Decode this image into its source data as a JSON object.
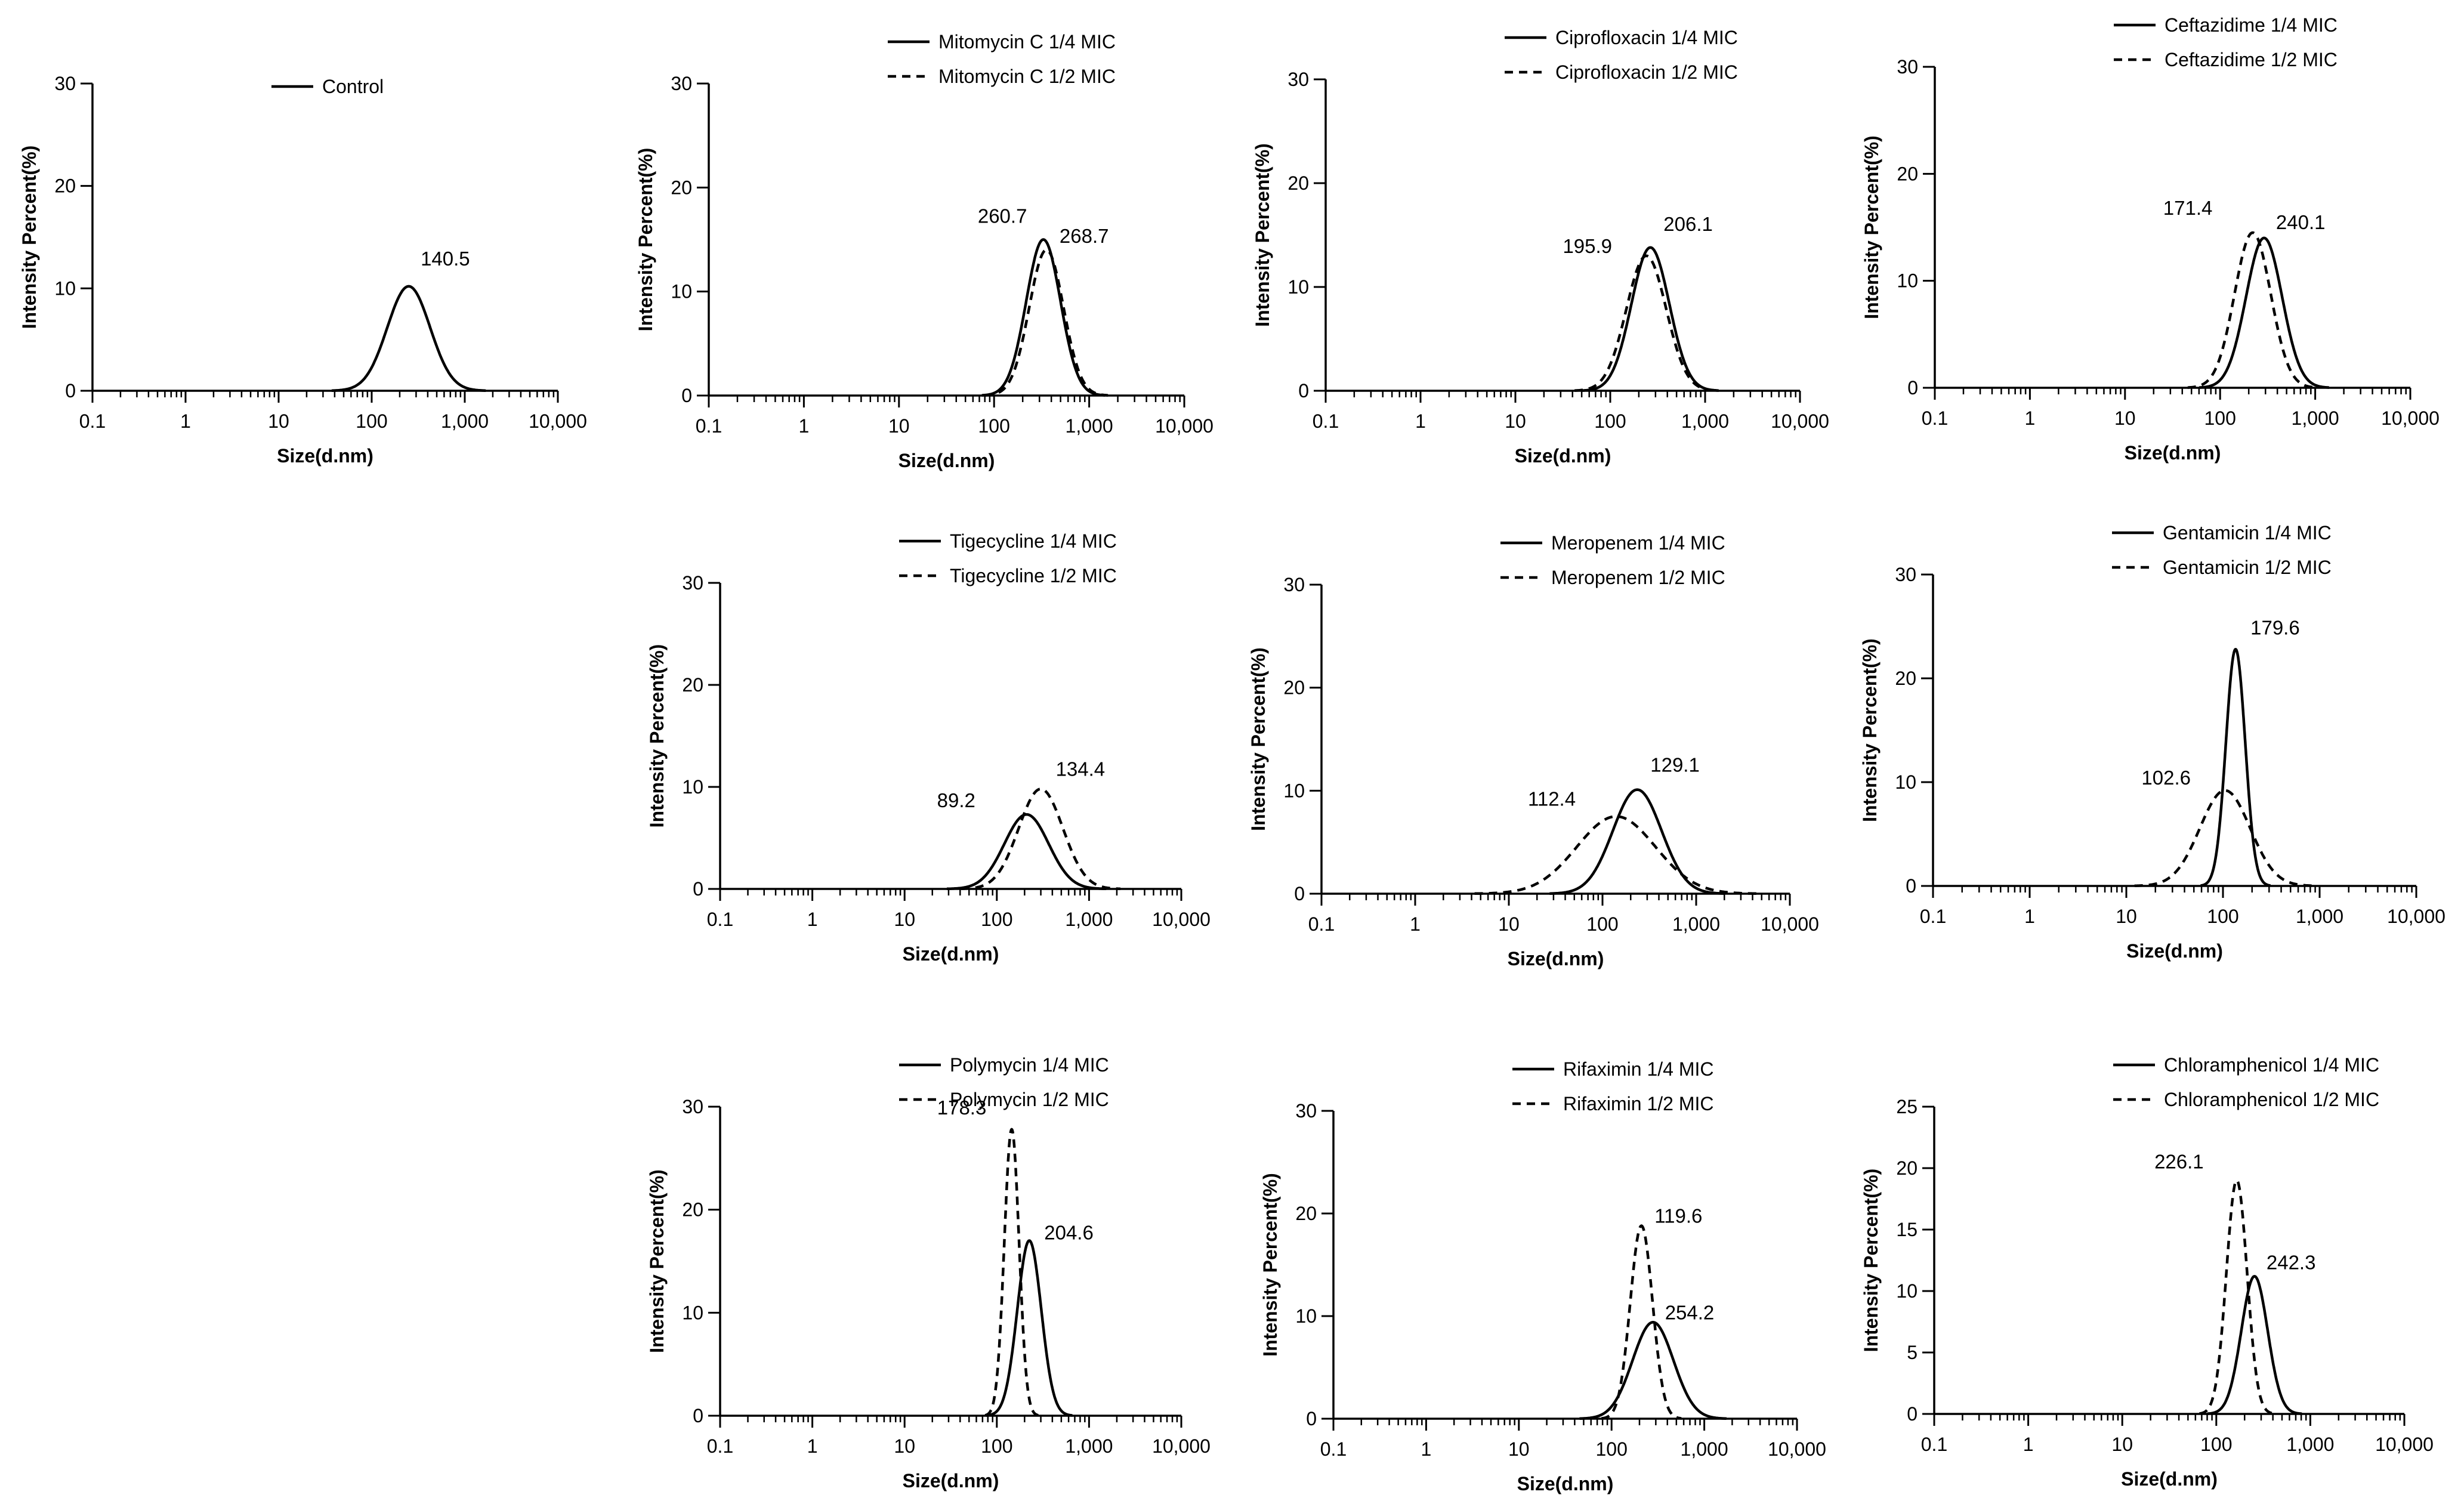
{
  "chart_data": [
    {
      "type": "line",
      "id": "control",
      "xlabel": "Size(d.nm)",
      "ylabel": "Intensity Percent(%)",
      "xscale": "log",
      "xlim": [
        0.1,
        10000
      ],
      "ylim": [
        0,
        30
      ],
      "xticks": [
        "0.1",
        "1",
        "10",
        "100",
        "1,000",
        "10,000"
      ],
      "yticks": [
        "0",
        "10",
        "20",
        "30"
      ],
      "series": [
        {
          "name": "Control",
          "style": "solid",
          "peak_x": 250,
          "peak_y": 10.2,
          "width": 0.23,
          "label": "140.5"
        }
      ]
    },
    {
      "type": "line",
      "id": "mitomycin",
      "xlabel": "Size(d.nm)",
      "ylabel": "Intensity Percent(%)",
      "xscale": "log",
      "xlim": [
        0.1,
        10000
      ],
      "ylim": [
        0,
        30
      ],
      "xticks": [
        "0.1",
        "1",
        "10",
        "100",
        "1,000",
        "10,000"
      ],
      "yticks": [
        "0",
        "10",
        "20",
        "30"
      ],
      "series": [
        {
          "name": "Mitomycin C 1/4 MIC",
          "style": "solid",
          "peak_x": 330,
          "peak_y": 15.0,
          "width": 0.18,
          "label": "260.7"
        },
        {
          "name": "Mitomycin C 1/2 MIC",
          "style": "dashed",
          "peak_x": 355,
          "peak_y": 14.0,
          "width": 0.18,
          "label": "268.7"
        }
      ]
    },
    {
      "type": "line",
      "id": "ciprofloxacin",
      "xlabel": "Size(d.nm)",
      "ylabel": "Intensity Percent(%)",
      "xscale": "log",
      "xlim": [
        0.1,
        10000
      ],
      "ylim": [
        0,
        30
      ],
      "xticks": [
        "0.1",
        "1",
        "10",
        "100",
        "1,000",
        "10,000"
      ],
      "yticks": [
        "0",
        "10",
        "20",
        "30"
      ],
      "series": [
        {
          "name": "Ciprofloxacin 1/4 MIC",
          "style": "solid",
          "peak_x": 265,
          "peak_y": 13.8,
          "width": 0.2,
          "label": "206.1"
        },
        {
          "name": "Ciprofloxacin 1/2 MIC",
          "style": "dashed",
          "peak_x": 240,
          "peak_y": 13.0,
          "width": 0.21,
          "label": "195.9"
        }
      ]
    },
    {
      "type": "line",
      "id": "ceftazidime",
      "xlabel": "Size(d.nm)",
      "ylabel": "Intensity Percent(%)",
      "xscale": "log",
      "xlim": [
        0.1,
        10000
      ],
      "ylim": [
        0,
        30
      ],
      "xticks": [
        "0.1",
        "1",
        "10",
        "100",
        "1,000",
        "10,000"
      ],
      "yticks": [
        "0",
        "10",
        "20",
        "30"
      ],
      "series": [
        {
          "name": "Ceftazidime 1/4 MIC",
          "style": "solid",
          "peak_x": 290,
          "peak_y": 14.0,
          "width": 0.19,
          "label": "240.1"
        },
        {
          "name": "Ceftazidime 1/2 MIC",
          "style": "dashed",
          "peak_x": 220,
          "peak_y": 14.5,
          "width": 0.19,
          "label": "171.4"
        }
      ]
    },
    {
      "type": "line",
      "id": "tigecycline",
      "xlabel": "Size(d.nm)",
      "ylabel": "Intensity Percent(%)",
      "xscale": "log",
      "xlim": [
        0.1,
        10000
      ],
      "ylim": [
        0,
        30
      ],
      "xticks": [
        "0.1",
        "1",
        "10",
        "100",
        "1,000",
        "10,000"
      ],
      "yticks": [
        "0",
        "10",
        "20",
        "30"
      ],
      "series": [
        {
          "name": "Tigecycline 1/4 MIC",
          "style": "solid",
          "peak_x": 210,
          "peak_y": 7.3,
          "width": 0.24,
          "label": "89.2"
        },
        {
          "name": "Tigecycline 1/2 MIC",
          "style": "dashed",
          "peak_x": 300,
          "peak_y": 9.8,
          "width": 0.24,
          "label": "134.4"
        }
      ]
    },
    {
      "type": "line",
      "id": "meropenem",
      "xlabel": "Size(d.nm)",
      "ylabel": "Intensity Percent(%)",
      "xscale": "log",
      "xlim": [
        0.1,
        10000
      ],
      "ylim": [
        0,
        30
      ],
      "xticks": [
        "0.1",
        "1",
        "10",
        "100",
        "1,000",
        "10,000"
      ],
      "yticks": [
        "0",
        "10",
        "20",
        "30"
      ],
      "series": [
        {
          "name": "Meropenem 1/4 MIC",
          "style": "solid",
          "peak_x": 235,
          "peak_y": 10.1,
          "width": 0.26,
          "label": "129.1"
        },
        {
          "name": "Meropenem 1/2 MIC",
          "style": "dashed",
          "peak_x": 140,
          "peak_y": 7.5,
          "width": 0.42,
          "label": "112.4"
        }
      ]
    },
    {
      "type": "line",
      "id": "gentamicin",
      "xlabel": "Size(d.nm)",
      "ylabel": "Intensity Percent(%)",
      "xscale": "log",
      "xlim": [
        0.1,
        10000
      ],
      "ylim": [
        0,
        30
      ],
      "xticks": [
        "0.1",
        "1",
        "10",
        "100",
        "1,000",
        "10,000"
      ],
      "yticks": [
        "0",
        "10",
        "20",
        "30"
      ],
      "series": [
        {
          "name": "Gentamicin 1/4 MIC",
          "style": "solid",
          "peak_x": 135,
          "peak_y": 22.8,
          "width": 0.1,
          "label": "179.6"
        },
        {
          "name": "Gentamicin 1/2 MIC",
          "style": "dashed",
          "peak_x": 105,
          "peak_y": 9.2,
          "width": 0.26,
          "label": "102.6"
        }
      ]
    },
    {
      "type": "line",
      "id": "polymycin",
      "xlabel": "Size(d.nm)",
      "ylabel": "Intensity Percent(%)",
      "xscale": "log",
      "xlim": [
        0.1,
        10000
      ],
      "ylim": [
        0,
        30
      ],
      "xticks": [
        "0.1",
        "1",
        "10",
        "100",
        "1,000",
        "10,000"
      ],
      "yticks": [
        "0",
        "10",
        "20",
        "30"
      ],
      "series": [
        {
          "name": "Polymycin 1/4 MIC",
          "style": "solid",
          "peak_x": 225,
          "peak_y": 17.0,
          "width": 0.13,
          "label": "204.6"
        },
        {
          "name": "Polymycin 1/2 MIC",
          "style": "dashed",
          "peak_x": 145,
          "peak_y": 27.8,
          "width": 0.08,
          "label": "178.3"
        }
      ]
    },
    {
      "type": "line",
      "id": "rifaximin",
      "xlabel": "Size(d.nm)",
      "ylabel": "Intensity Percent(%)",
      "xscale": "log",
      "xlim": [
        0.1,
        10000
      ],
      "ylim": [
        0,
        30
      ],
      "xticks": [
        "0.1",
        "1",
        "10",
        "100",
        "1,000",
        "10,000"
      ],
      "yticks": [
        "0",
        "10",
        "20",
        "30"
      ],
      "series": [
        {
          "name": "Rifaximin 1/4 MIC",
          "style": "solid",
          "peak_x": 280,
          "peak_y": 9.4,
          "width": 0.22,
          "label": "254.2"
        },
        {
          "name": "Rifaximin 1/2 MIC",
          "style": "dashed",
          "peak_x": 210,
          "peak_y": 18.8,
          "width": 0.12,
          "label": "119.6"
        }
      ]
    },
    {
      "type": "line",
      "id": "chloramphenicol",
      "xlabel": "Size(d.nm)",
      "ylabel": "Intensity Percent(%)",
      "xscale": "log",
      "xlim": [
        0.1,
        10000
      ],
      "ylim": [
        0,
        25
      ],
      "xticks": [
        "0.1",
        "1",
        "10",
        "100",
        "1,000",
        "10,000"
      ],
      "yticks": [
        "0",
        "5",
        "10",
        "15",
        "20",
        "25"
      ],
      "series": [
        {
          "name": "Chloramphenicol 1/4 MIC",
          "style": "solid",
          "peak_x": 255,
          "peak_y": 11.2,
          "width": 0.14,
          "label": "242.3"
        },
        {
          "name": "Chloramphenicol 1/2 MIC",
          "style": "dashed",
          "peak_x": 165,
          "peak_y": 19.0,
          "width": 0.11,
          "label": "226.1"
        }
      ]
    }
  ]
}
